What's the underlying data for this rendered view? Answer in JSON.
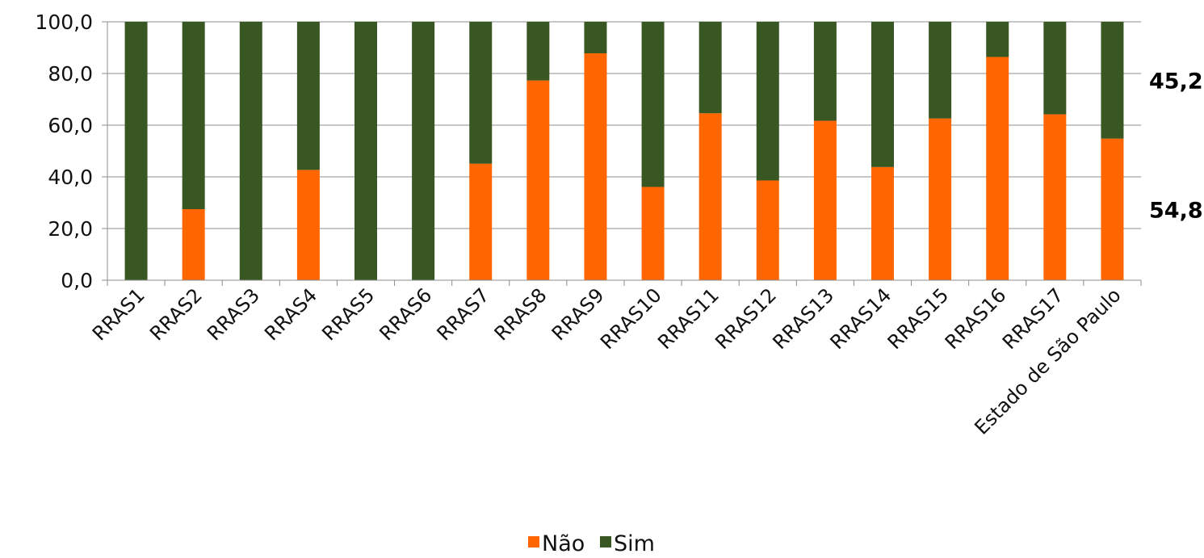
{
  "chart_data": {
    "type": "bar",
    "stacked": true,
    "categories": [
      "RRAS1",
      "RRAS2",
      "RRAS3",
      "RRAS4",
      "RRAS5",
      "RRAS6",
      "RRAS7",
      "RRAS8",
      "RRAS9",
      "RRAS10",
      "RRAS11",
      "RRAS12",
      "RRAS13",
      "RRAS14",
      "RRAS15",
      "RRAS16",
      "RRAS17",
      "Estado de São Paulo"
    ],
    "series": [
      {
        "name": "Não",
        "color": "#ff6600",
        "values": [
          0,
          27.5,
          0,
          42.7,
          0,
          0,
          45.1,
          77.3,
          87.8,
          36.1,
          64.6,
          38.6,
          61.7,
          43.8,
          62.6,
          86.4,
          64.2,
          54.8
        ]
      },
      {
        "name": "Sim",
        "color": "#385723",
        "values": [
          100,
          72.5,
          100,
          57.3,
          100,
          100,
          54.9,
          22.7,
          12.2,
          63.9,
          35.4,
          61.4,
          38.3,
          56.2,
          37.4,
          13.6,
          35.8,
          45.2
        ]
      }
    ],
    "ylim": [
      0,
      100
    ],
    "yticks": [
      "0,0",
      "20,0",
      "40,0",
      "60,0",
      "80,0",
      "100,0"
    ],
    "grid": true,
    "legend": "bottom",
    "annotations": [
      {
        "text": "45,2",
        "series": "Sim",
        "category": "Estado de São Paulo"
      },
      {
        "text": "54,8",
        "series": "Não",
        "category": "Estado de São Paulo"
      }
    ],
    "title": "",
    "xlabel": "",
    "ylabel": ""
  }
}
